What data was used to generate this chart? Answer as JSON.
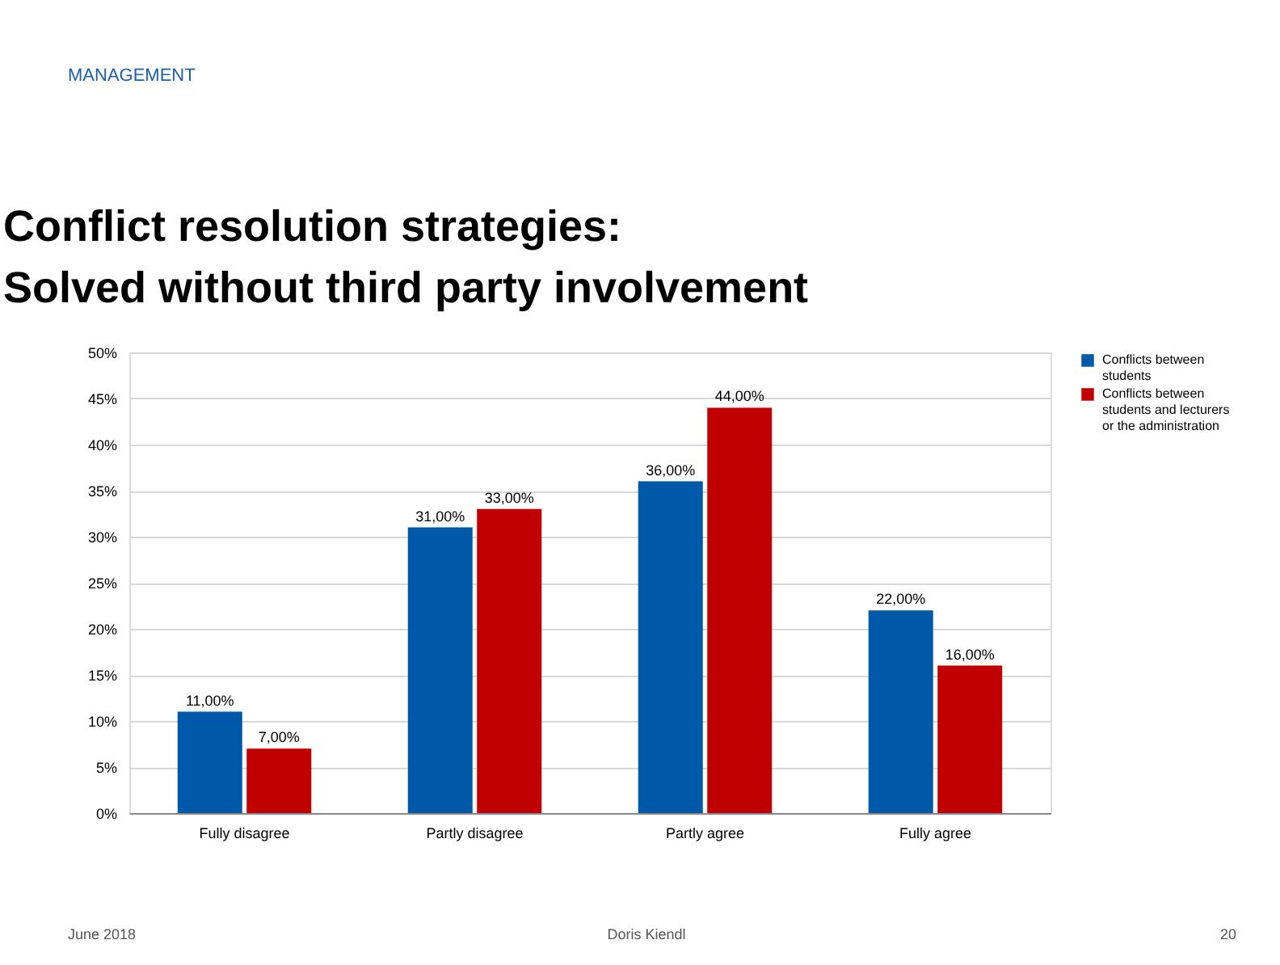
{
  "chart_data": {
    "type": "bar",
    "title": "Conflict resolution strategies:\nSolved without third party involvement",
    "categories": [
      "Fully disagree",
      "Partly disagree",
      "Partly agree",
      "Fully agree"
    ],
    "series": [
      {
        "name": "Conflicts between students",
        "color": "#0058a8",
        "values": [
          11,
          31,
          36,
          22
        ],
        "value_labels": [
          "11,00%",
          "31,00%",
          "36,00%",
          "22,00%"
        ]
      },
      {
        "name": "Conflicts between students and lecturers or the administration",
        "color": "#c00000",
        "values": [
          7,
          33,
          44,
          16
        ],
        "value_labels": [
          "7,00%",
          "33,00%",
          "44,00%",
          "16,00%"
        ]
      }
    ],
    "ylim": [
      0,
      50
    ],
    "yticks": [
      {
        "value": 0,
        "label": "0%"
      },
      {
        "value": 5,
        "label": "5%"
      },
      {
        "value": 10,
        "label": "10%"
      },
      {
        "value": 15,
        "label": "15%"
      },
      {
        "value": 20,
        "label": "20%"
      },
      {
        "value": 25,
        "label": "25%"
      },
      {
        "value": 30,
        "label": "30%"
      },
      {
        "value": 35,
        "label": "35%"
      },
      {
        "value": 40,
        "label": "40%"
      },
      {
        "value": 45,
        "label": "45%"
      },
      {
        "value": 50,
        "label": "50%"
      }
    ],
    "grid": "y",
    "legend": "right",
    "annotations": [
      "MANAGEMENT",
      "June 2018",
      "Doris Kiendl",
      "20"
    ]
  }
}
